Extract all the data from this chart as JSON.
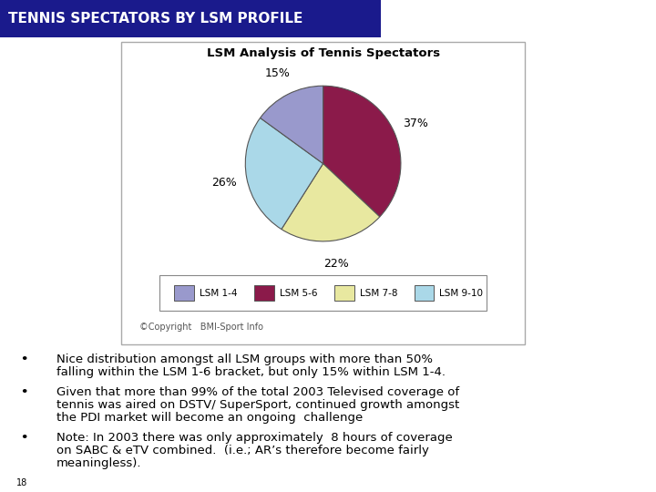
{
  "title_text": "TENNIS SPECTATORS BY LSM PROFILE",
  "title_bg_color": "#1a1a8c",
  "title_text_color": "#ffffff",
  "pie_title": "LSM Analysis of Tennis Spectators",
  "pie_values": [
    37,
    22,
    26,
    15
  ],
  "pie_labels": [
    "LSM 5-6",
    "LSM 7-8",
    "LSM 9-10",
    "LSM 1-4"
  ],
  "pie_colors": [
    "#8b1a4a",
    "#e8e8a0",
    "#aad8e8",
    "#9999cc"
  ],
  "pie_pct_labels": [
    "37%",
    "22%",
    "26%",
    "15%"
  ],
  "pie_startangle": 90,
  "legend_labels": [
    "LSM 1-4",
    "LSM 5-6",
    "LSM 7-8",
    "LSM 9-10"
  ],
  "legend_colors": [
    "#9999cc",
    "#8b1a4a",
    "#e8e8a0",
    "#aad8e8"
  ],
  "copyright_text": "©Copyright   BMI-Sport Info",
  "bullet1": "Nice distribution amongst all LSM groups with more than 50%\nfalling within the LSM 1-6 bracket, but only 15% within LSM 1-4.",
  "bullet2": "Given that more than 99% of the total 2003 Televised coverage of\ntennis was aired on DSTV/ SuperSport, continued growth amongst\nthe PDI market will become an ongoing  challenge",
  "bullet3": "Note: In 2003 there was only approximately  8 hours of coverage\non SABC & eTV combined.  (i.e.; AR’s therefore become fairly\nmeaningless).",
  "page_number": "18",
  "bg_color": "#ffffff",
  "box_bg": "#f8f8f8",
  "box_edge": "#aaaaaa"
}
